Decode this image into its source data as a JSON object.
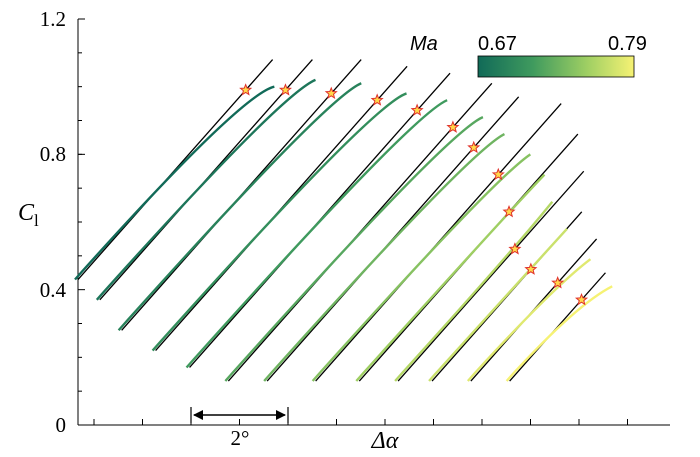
{
  "chart_data": {
    "type": "line",
    "xlabel": "Δα",
    "ylabel": "C",
    "ylabel_subscript": "l",
    "ylim": [
      0,
      1.2
    ],
    "y_ticks": [
      0,
      0.4,
      0.8,
      1.2
    ],
    "y_tick_labels": [
      "0",
      "0.4",
      "0.8",
      "1.2"
    ],
    "grid": false,
    "scale_bar": {
      "label": "2°",
      "span_degrees": 2
    },
    "colorbar": {
      "title": "Ma",
      "min_label": "0.67",
      "max_label": "0.79",
      "min": 0.67,
      "max": 0.79,
      "colors": [
        "#116a58",
        "#3f9a5e",
        "#9fcf63",
        "#f6f274"
      ]
    },
    "curves": [
      {
        "mach": 0.67,
        "y_start": 0.43,
        "y_star": 0.99,
        "y_tangent_end": 1.08,
        "peak": 1.0
      },
      {
        "mach": 0.68,
        "y_start": 0.37,
        "y_star": 0.99,
        "y_tangent_end": 1.08,
        "peak": 1.02
      },
      {
        "mach": 0.69,
        "y_start": 0.28,
        "y_star": 0.98,
        "y_tangent_end": 1.08,
        "peak": 1.01
      },
      {
        "mach": 0.7,
        "y_start": 0.22,
        "y_star": 0.96,
        "y_tangent_end": 1.06,
        "peak": 0.98
      },
      {
        "mach": 0.71,
        "y_start": 0.17,
        "y_star": 0.93,
        "y_tangent_end": 1.04,
        "peak": 0.96
      },
      {
        "mach": 0.72,
        "y_start": 0.13,
        "y_star": 0.88,
        "y_tangent_end": 1.01,
        "peak": 0.91
      },
      {
        "mach": 0.73,
        "y_start": 0.13,
        "y_star": 0.82,
        "y_tangent_end": 0.97,
        "peak": 0.86
      },
      {
        "mach": 0.74,
        "y_start": 0.13,
        "y_star": 0.74,
        "y_tangent_end": 0.95,
        "peak": 0.8
      },
      {
        "mach": 0.75,
        "y_start": 0.13,
        "y_star": 0.63,
        "y_tangent_end": 0.86,
        "peak": 0.74
      },
      {
        "mach": 0.76,
        "y_start": 0.13,
        "y_star": 0.52,
        "y_tangent_end": 0.75,
        "peak": 0.66
      },
      {
        "mach": 0.77,
        "y_start": 0.13,
        "y_star": 0.46,
        "y_tangent_end": 0.63,
        "peak": 0.58
      },
      {
        "mach": 0.78,
        "y_start": 0.13,
        "y_star": 0.42,
        "y_tangent_end": 0.55,
        "peak": 0.49
      },
      {
        "mach": 0.79,
        "y_start": 0.13,
        "y_star": 0.37,
        "y_tangent_end": 0.45,
        "peak": 0.41
      }
    ],
    "curve_x_offsets_deg": [
      0,
      0.45,
      0.9,
      1.6,
      2.3,
      3.1,
      3.9,
      4.9,
      5.8,
      6.6,
      7.3,
      8.1,
      8.9
    ],
    "marker_style": {
      "shape": "star",
      "fill": "#ffd84a",
      "stroke": "#e0302a"
    }
  }
}
